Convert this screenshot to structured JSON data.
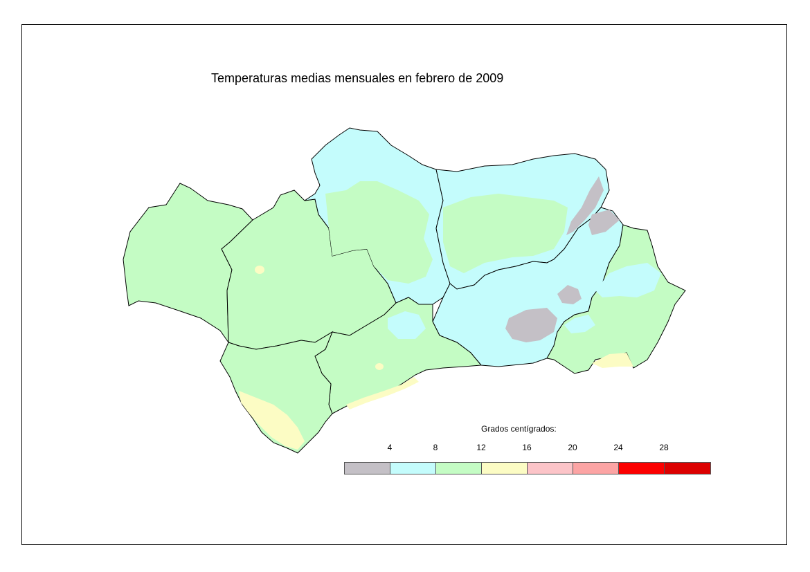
{
  "map": {
    "title": "Temperaturas medias mensuales en febrero de 2009",
    "region_colors": {
      "below_4": "#c4c0c6",
      "4_8": "#c4fcfc",
      "8_12": "#c4fcc4",
      "12_16": "#fcfcc4"
    },
    "outline_color": "#000000"
  },
  "legend": {
    "title": "Grados centígrados:",
    "ticks": [
      "4",
      "8",
      "12",
      "16",
      "20",
      "24",
      "28"
    ],
    "bins": [
      {
        "color": "#c4c0c6"
      },
      {
        "color": "#c4fcfc"
      },
      {
        "color": "#c4fcc4"
      },
      {
        "color": "#fcfcc4"
      },
      {
        "color": "#fcc4c8"
      },
      {
        "color": "#fca4a4"
      },
      {
        "color": "#fc0000"
      },
      {
        "color": "#dc0000"
      }
    ]
  }
}
